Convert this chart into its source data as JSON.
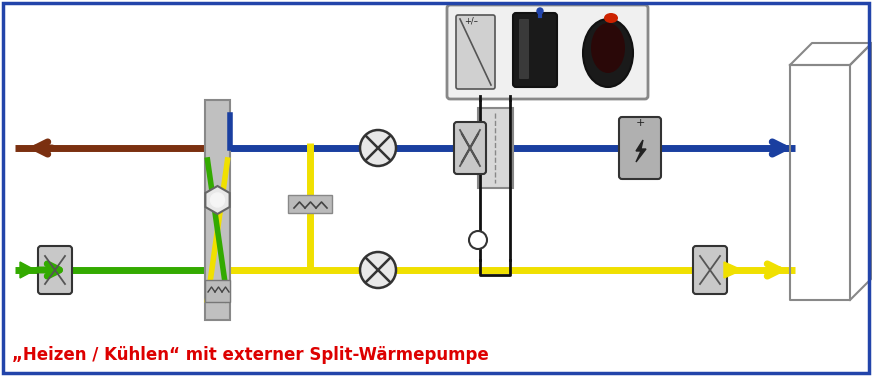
{
  "title": "„Heizen / Kühlen“ mit externer Split-Wärmepumpe",
  "title_color": "#dd0000",
  "border_color": "#2244aa",
  "bg_color": "#ffffff",
  "line_blue": "#1a3fa0",
  "line_brown": "#7b3010",
  "line_yellow": "#f0e000",
  "line_green": "#33aa00",
  "line_gray": "#888888",
  "comp_gray_light": "#d0d0d0",
  "comp_gray_mid": "#aaaaaa",
  "comp_gray_dark": "#666666"
}
